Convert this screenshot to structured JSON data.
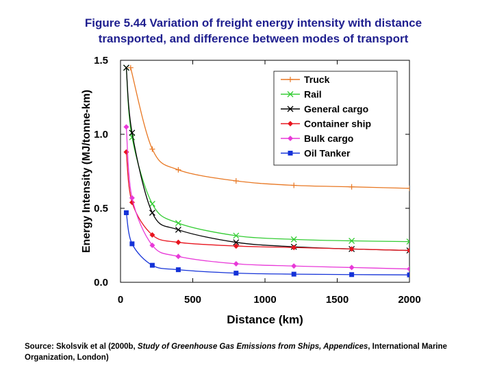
{
  "figure": {
    "title_line1": "Figure 5.44 Variation of freight energy intensity with distance",
    "title_line2": "transported, and difference between modes of transport"
  },
  "source": {
    "prefix": "Source: Skolsvik et al (2000b, ",
    "italic": "Study of Greenhouse Gas Emissions from Ships, Appendices",
    "suffix": ", International Marine Organization, London)"
  },
  "chart_data": {
    "type": "line",
    "title": "",
    "xlabel": "Distance (km)",
    "ylabel": "Energy Intensity (MJ/tonne-km)",
    "xlim": [
      0,
      2000
    ],
    "ylim": [
      0,
      1.5
    ],
    "xticks": [
      0,
      500,
      1000,
      1500,
      2000
    ],
    "yticks": [
      0.0,
      0.5,
      1.0,
      1.5
    ],
    "xtick_labels": [
      "0",
      "500",
      "1000",
      "1500",
      "2000"
    ],
    "ytick_labels": [
      "0.0",
      "0.5",
      "1.0",
      "1.5"
    ],
    "grid": false,
    "legend_position": "top-right",
    "series": [
      {
        "name": "Truck",
        "color": "#e87722",
        "marker": "plus",
        "x": [
          70,
          220,
          400,
          800,
          1200,
          1600,
          2000
        ],
        "y": [
          1.45,
          0.9,
          0.76,
          0.685,
          0.655,
          0.645,
          0.635
        ]
      },
      {
        "name": "Rail",
        "color": "#33cc33",
        "marker": "x",
        "x": [
          40,
          80,
          220,
          400,
          800,
          1200,
          1600,
          2000
        ],
        "y": [
          1.45,
          0.98,
          0.53,
          0.4,
          0.315,
          0.29,
          0.28,
          0.275
        ]
      },
      {
        "name": "General cargo",
        "color": "#000000",
        "marker": "x",
        "x": [
          40,
          80,
          220,
          400,
          800,
          1200,
          1600,
          2000
        ],
        "y": [
          1.45,
          1.01,
          0.47,
          0.355,
          0.27,
          0.24,
          0.225,
          0.215
        ]
      },
      {
        "name": "Container ship",
        "color": "#e8141e",
        "marker": "diamond",
        "x": [
          40,
          80,
          220,
          400,
          800,
          1200,
          1600,
          2000
        ],
        "y": [
          0.88,
          0.54,
          0.32,
          0.27,
          0.245,
          0.235,
          0.225,
          0.215
        ]
      },
      {
        "name": "Bulk cargo",
        "color": "#e838d8",
        "marker": "diamond",
        "x": [
          40,
          80,
          220,
          400,
          800,
          1200,
          1600,
          2000
        ],
        "y": [
          1.05,
          0.57,
          0.25,
          0.175,
          0.125,
          0.11,
          0.1,
          0.09
        ]
      },
      {
        "name": "Oil Tanker",
        "color": "#1432d8",
        "marker": "square",
        "x": [
          40,
          80,
          220,
          400,
          800,
          1200,
          1600,
          2000
        ],
        "y": [
          0.47,
          0.26,
          0.115,
          0.085,
          0.062,
          0.055,
          0.052,
          0.05
        ]
      }
    ]
  }
}
